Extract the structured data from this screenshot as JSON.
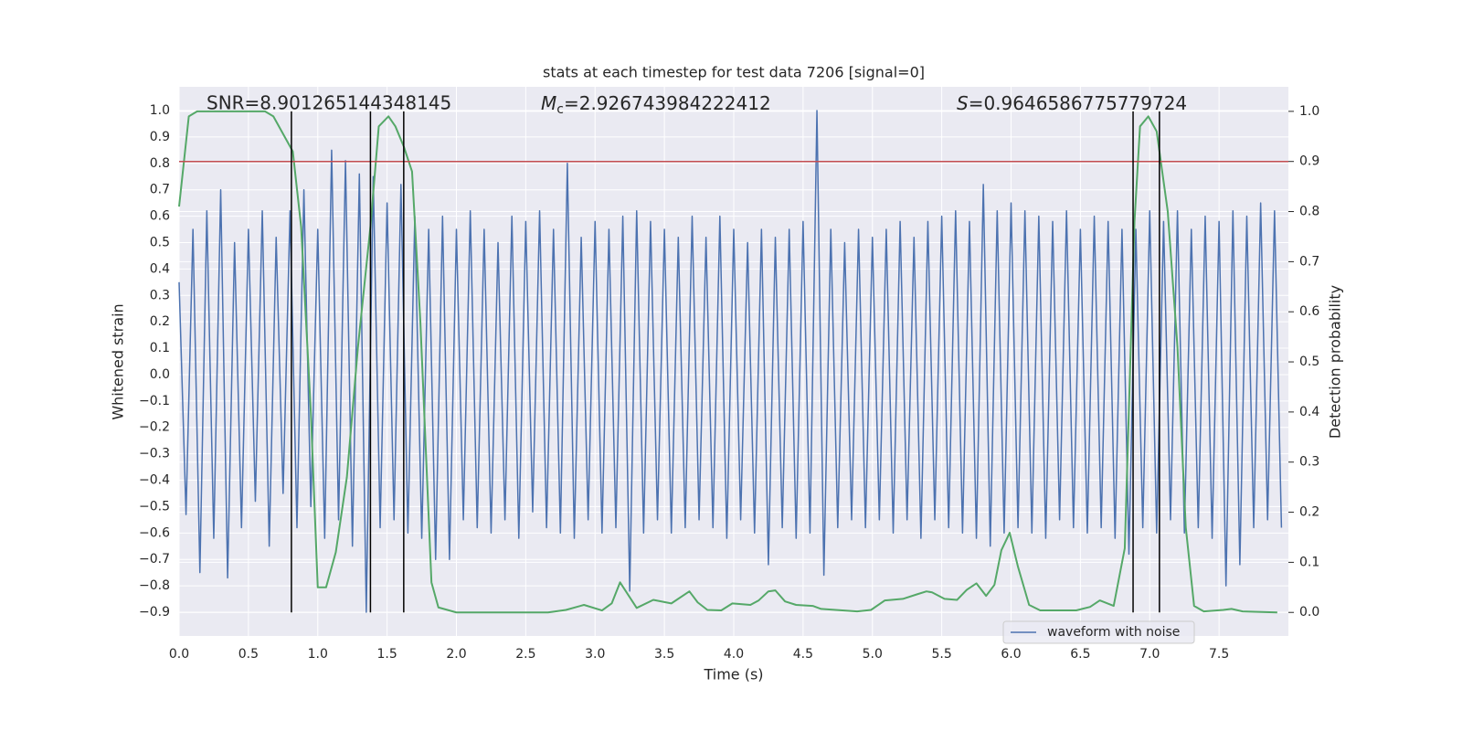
{
  "chart_data": {
    "type": "line",
    "title": "stats at each timestep for test data 7206 [signal=0]",
    "xlabel": "Time (s)",
    "ylabel": "Whitened strain",
    "y2label": "Detection probability",
    "annotations": [
      {
        "text": "SNR=8.901265144348145"
      },
      {
        "italic": "M",
        "sub": "c",
        "text": "=2.926743984222412"
      },
      {
        "italic": "S",
        "text": "=0.9646586775779724"
      }
    ],
    "xlim": [
      0,
      8
    ],
    "ylim": [
      -0.99,
      1.09
    ],
    "y2lim": [
      -0.047,
      1.049
    ],
    "xticks": [
      {
        "value": 0,
        "label": "0.0"
      },
      0.5,
      {
        "value": 1,
        "label": "1.0"
      },
      1.5,
      {
        "value": 2,
        "label": "2.0"
      },
      2.5,
      {
        "value": 3,
        "label": "3.0"
      },
      3.5,
      {
        "value": 4,
        "label": "4.0"
      },
      4.5,
      {
        "value": 5,
        "label": "5.0"
      },
      5.5,
      {
        "value": 6,
        "label": "6.0"
      },
      6.5,
      {
        "value": 7,
        "label": "7.0"
      },
      7.5
    ],
    "yticks": [
      {
        "value": -0.9,
        "label": "−0.9"
      },
      {
        "value": -0.8,
        "label": "−0.8"
      },
      {
        "value": -0.7,
        "label": "−0.7"
      },
      {
        "value": -0.6,
        "label": "−0.6"
      },
      {
        "value": -0.5,
        "label": "−0.5"
      },
      {
        "value": -0.4,
        "label": "−0.4"
      },
      {
        "value": -0.3,
        "label": "−0.3"
      },
      {
        "value": -0.2,
        "label": "−0.2"
      },
      {
        "value": -0.1,
        "label": "−0.1"
      },
      {
        "value": 0,
        "label": "0.0"
      },
      0.1,
      0.2,
      0.3,
      0.4,
      0.5,
      0.6,
      0.7,
      0.8,
      0.9,
      {
        "value": 1,
        "label": "1.0"
      }
    ],
    "y2ticks": [
      {
        "value": 0,
        "label": "0.0"
      },
      0.1,
      0.2,
      0.3,
      0.4,
      0.5,
      0.6,
      0.7,
      0.8,
      0.9,
      {
        "value": 1,
        "label": "1.0"
      }
    ],
    "grid": true,
    "legend": "lower right",
    "series": [
      {
        "name": "waveform with noise",
        "color": "#4c72b0",
        "x": [
          0,
          0.05,
          0.1,
          0.15,
          0.2,
          0.25,
          0.3,
          0.35,
          0.4,
          0.45,
          0.5,
          0.55,
          0.6,
          0.65,
          0.7,
          0.75,
          0.8,
          0.85,
          0.9,
          0.95,
          1,
          1.05,
          1.1,
          1.15,
          1.2,
          1.25,
          1.3,
          1.35,
          1.4,
          1.45,
          1.5,
          1.55,
          1.6,
          1.65,
          1.7,
          1.75,
          1.8,
          1.85,
          1.9,
          1.95,
          2,
          2.05,
          2.1,
          2.15,
          2.2,
          2.25,
          2.3,
          2.35,
          2.4,
          2.45,
          2.5,
          2.55,
          2.6,
          2.65,
          2.7,
          2.75,
          2.8,
          2.85,
          2.9,
          2.95,
          3,
          3.05,
          3.1,
          3.15,
          3.2,
          3.25,
          3.3,
          3.35,
          3.4,
          3.45,
          3.5,
          3.55,
          3.6,
          3.65,
          3.7,
          3.75,
          3.8,
          3.85,
          3.9,
          3.95,
          4,
          4.05,
          4.1,
          4.15,
          4.2,
          4.25,
          4.3,
          4.35,
          4.4,
          4.45,
          4.5,
          4.55,
          4.6,
          4.65,
          4.7,
          4.75,
          4.8,
          4.85,
          4.9,
          4.95,
          5,
          5.05,
          5.1,
          5.15,
          5.2,
          5.25,
          5.3,
          5.35,
          5.4,
          5.45,
          5.5,
          5.55,
          5.6,
          5.65,
          5.7,
          5.75,
          5.8,
          5.85,
          5.9,
          5.95,
          6,
          6.05,
          6.1,
          6.15,
          6.2,
          6.25,
          6.3,
          6.35,
          6.4,
          6.45,
          6.5,
          6.55,
          6.6,
          6.65,
          6.7,
          6.75,
          6.8,
          6.85,
          6.9,
          6.95,
          7,
          7.05,
          7.1,
          7.15,
          7.2,
          7.25,
          7.3,
          7.35,
          7.4,
          7.45,
          7.5,
          7.55,
          7.6,
          7.65,
          7.7,
          7.75,
          7.8,
          7.85,
          7.9,
          7.95
        ],
        "values": [
          0.35,
          -0.53,
          0.55,
          -0.75,
          0.62,
          -0.62,
          0.7,
          -0.77,
          0.5,
          -0.58,
          0.55,
          -0.48,
          0.62,
          -0.65,
          0.52,
          -0.45,
          0.62,
          -0.58,
          0.7,
          -0.5,
          0.55,
          -0.62,
          0.85,
          -0.55,
          0.81,
          -0.65,
          0.76,
          -0.9,
          0.75,
          -0.58,
          0.65,
          -0.55,
          0.72,
          -0.6,
          0.6,
          -0.62,
          0.55,
          -0.7,
          0.6,
          -0.7,
          0.55,
          -0.55,
          0.62,
          -0.58,
          0.55,
          -0.6,
          0.5,
          -0.55,
          0.6,
          -0.62,
          0.58,
          -0.52,
          0.62,
          -0.58,
          0.55,
          -0.6,
          0.8,
          -0.62,
          0.52,
          -0.55,
          0.58,
          -0.6,
          0.55,
          -0.58,
          0.6,
          -0.82,
          0.62,
          -0.6,
          0.58,
          -0.55,
          0.55,
          -0.6,
          0.52,
          -0.58,
          0.6,
          -0.55,
          0.52,
          -0.58,
          0.6,
          -0.62,
          0.55,
          -0.55,
          0.5,
          -0.6,
          0.55,
          -0.72,
          0.52,
          -0.58,
          0.55,
          -0.62,
          0.58,
          -0.6,
          1.0,
          -0.76,
          0.55,
          -0.58,
          0.5,
          -0.55,
          0.55,
          -0.58,
          0.52,
          -0.55,
          0.55,
          -0.6,
          0.58,
          -0.55,
          0.52,
          -0.62,
          0.58,
          -0.55,
          0.6,
          -0.58,
          0.62,
          -0.6,
          0.58,
          -0.62,
          0.72,
          -0.65,
          0.62,
          -0.6,
          0.65,
          -0.58,
          0.62,
          -0.6,
          0.6,
          -0.62,
          0.58,
          -0.55,
          0.62,
          -0.58,
          0.55,
          -0.6,
          0.6,
          -0.58,
          0.58,
          -0.62,
          0.55,
          -0.68,
          0.55,
          -0.58,
          0.62,
          -0.6,
          0.58,
          -0.55,
          0.62,
          -0.6,
          0.55,
          -0.58,
          0.6,
          -0.62,
          0.58,
          -0.8,
          0.62,
          -0.72,
          0.6,
          -0.58,
          0.65,
          -0.55,
          0.62,
          -0.58
        ]
      },
      {
        "color": "#55a868",
        "axis": "y2",
        "x": [
          0,
          0.07,
          0.13,
          0.62,
          0.68,
          0.82,
          0.88,
          0.95,
          1,
          1.06,
          1.13,
          1.21,
          1.29,
          1.38,
          1.44,
          1.51,
          1.56,
          1.62,
          1.68,
          1.74,
          1.82,
          1.87,
          2,
          2.66,
          2.79,
          2.92,
          3.05,
          3.12,
          3.18,
          3.3,
          3.42,
          3.55,
          3.68,
          3.74,
          3.81,
          3.91,
          3.99,
          4.12,
          4.18,
          4.25,
          4.3,
          4.37,
          4.45,
          4.57,
          4.63,
          4.89,
          4.99,
          5.09,
          5.22,
          5.32,
          5.39,
          5.43,
          5.52,
          5.61,
          5.68,
          5.75,
          5.82,
          5.88,
          5.93,
          5.99,
          6.05,
          6.13,
          6.21,
          6.47,
          6.57,
          6.64,
          6.74,
          6.82,
          6.89,
          6.93,
          6.99,
          7.05,
          7.13,
          7.2,
          7.26,
          7.32,
          7.39,
          7.53,
          7.59,
          7.67,
          7.92
        ],
        "values": [
          0.81,
          0.99,
          1.0,
          1.0,
          0.99,
          0.92,
          0.77,
          0.4,
          0.05,
          0.05,
          0.12,
          0.27,
          0.53,
          0.77,
          0.97,
          0.99,
          0.97,
          0.93,
          0.88,
          0.58,
          0.06,
          0.01,
          0.0,
          0.0,
          0.005,
          0.015,
          0.004,
          0.018,
          0.06,
          0.009,
          0.025,
          0.018,
          0.042,
          0.02,
          0.005,
          0.004,
          0.018,
          0.015,
          0.024,
          0.042,
          0.044,
          0.022,
          0.015,
          0.013,
          0.007,
          0.002,
          0.005,
          0.024,
          0.027,
          0.036,
          0.042,
          0.04,
          0.027,
          0.025,
          0.045,
          0.058,
          0.033,
          0.055,
          0.124,
          0.159,
          0.091,
          0.015,
          0.004,
          0.004,
          0.011,
          0.024,
          0.013,
          0.128,
          0.78,
          0.97,
          0.99,
          0.96,
          0.8,
          0.53,
          0.17,
          0.013,
          0.002,
          0.005,
          0.007,
          0.002,
          0.0
        ]
      }
    ],
    "hlines": [
      {
        "value": 0.9,
        "axis": "y2",
        "color": "#c44e52"
      }
    ],
    "vlines": {
      "x": [
        0.81,
        1.38,
        1.62,
        6.88,
        7.07
      ],
      "ymin": 0,
      "ymax": 1,
      "axis": "y2",
      "color": "#000000"
    }
  }
}
